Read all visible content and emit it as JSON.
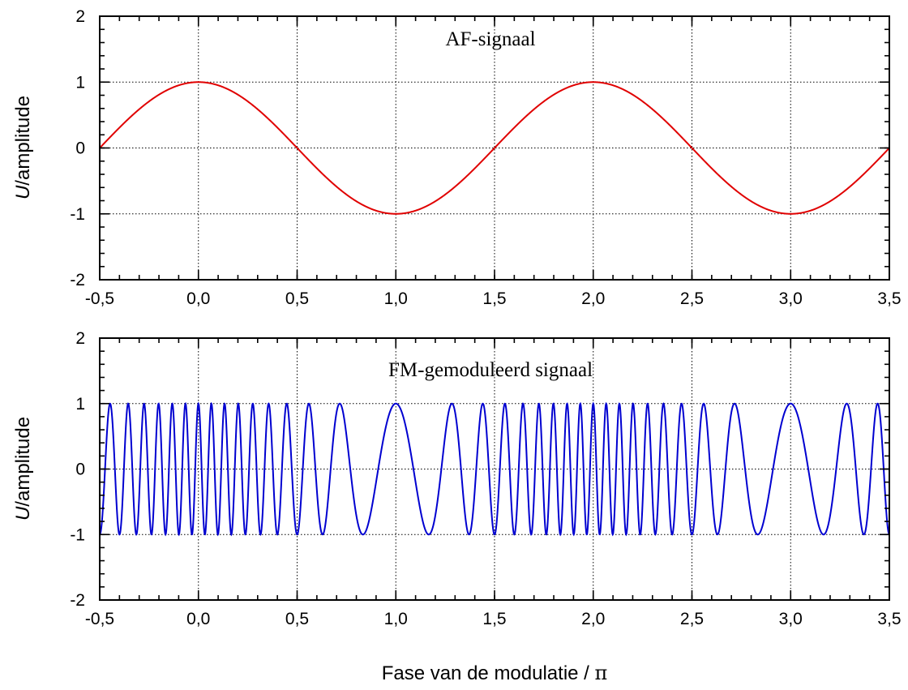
{
  "xlabel_prefix": "Fase van de modulatie / ",
  "xlabel_symbol": "π",
  "chart_data": [
    {
      "type": "line",
      "annotation": "AF-signaal",
      "ylabel_italic": "U",
      "ylabel_rest": "/amplitude",
      "xlim": [
        -0.5,
        3.5
      ],
      "ylim": [
        -2,
        2
      ],
      "x_ticks": [
        "-0,5",
        "0,0",
        "0,5",
        "1,0",
        "1,5",
        "2,0",
        "2,5",
        "3,0",
        "3,5"
      ],
      "y_ticks": [
        "2",
        "1",
        "0",
        "-1",
        "-2"
      ],
      "grid": true,
      "color": "#e00000",
      "series": [
        {
          "function": "U = cos(π·x)",
          "x": [
            -0.5,
            -0.25,
            0.0,
            0.25,
            0.5,
            0.75,
            1.0,
            1.25,
            1.5,
            1.75,
            2.0,
            2.25,
            2.5,
            2.75,
            3.0,
            3.25,
            3.5
          ],
          "y": [
            0,
            0.707,
            1,
            0.707,
            0,
            -0.707,
            -1,
            -0.707,
            0,
            0.707,
            1,
            0.707,
            0,
            -0.707,
            -1,
            -0.707,
            0
          ]
        }
      ]
    },
    {
      "type": "line",
      "annotation": "FM-gemoduleerd signaal",
      "ylabel_italic": "U",
      "ylabel_rest": "/amplitude",
      "xlim": [
        -0.5,
        3.5
      ],
      "ylim": [
        -2,
        2
      ],
      "x_ticks": [
        "-0,5",
        "0,0",
        "0,5",
        "1,0",
        "1,5",
        "2,0",
        "2,5",
        "3,0",
        "3,5"
      ],
      "y_ticks": [
        "2",
        "1",
        "0",
        "-1",
        "-2"
      ],
      "grid": true,
      "color": "#0000d0",
      "series": [
        {
          "function": "U = cos(2π·(9·x + 2·sin(π·x)))",
          "carrier_cycles_per_unit": 9,
          "deviation_cycles_per_unit": 2
        }
      ]
    }
  ]
}
